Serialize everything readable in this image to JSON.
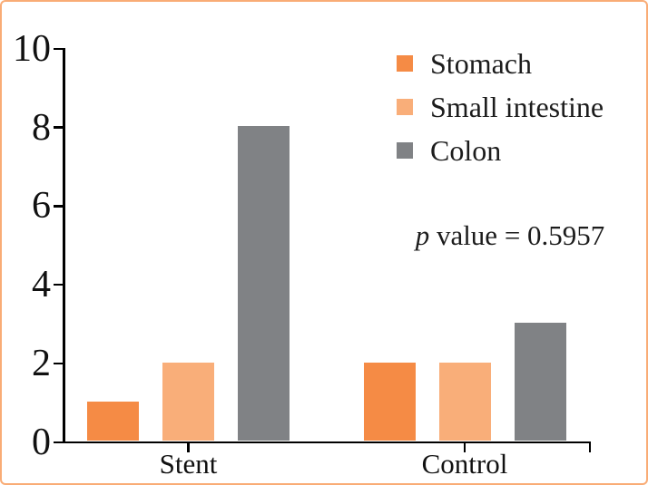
{
  "figure": {
    "background": "#FFFFFF",
    "border_color": "#F9AC76"
  },
  "chart_data": {
    "type": "bar",
    "title": "",
    "xlabel": "",
    "ylabel": "",
    "categories": [
      "Stent",
      "Control"
    ],
    "series": [
      {
        "name": "Stomach",
        "color": "#F58B45",
        "values": [
          1,
          2
        ]
      },
      {
        "name": "Small intestine",
        "color": "#F9AE79",
        "values": [
          2,
          2
        ]
      },
      {
        "name": "Colon",
        "color": "#808285",
        "values": [
          8,
          3
        ]
      }
    ],
    "ylim": [
      0,
      10
    ],
    "yticks": [
      "0",
      "2",
      "4",
      "6",
      "8",
      "10"
    ],
    "grid": false,
    "legend": {
      "position": "top-right"
    },
    "annotation": "p value = 0.5957",
    "annotation_parts": {
      "italic": "p",
      "rest": " value = 0.5957"
    },
    "colors": {
      "axis": "#000000",
      "text": "#1C1C1C",
      "border": "#F9AC76"
    }
  }
}
